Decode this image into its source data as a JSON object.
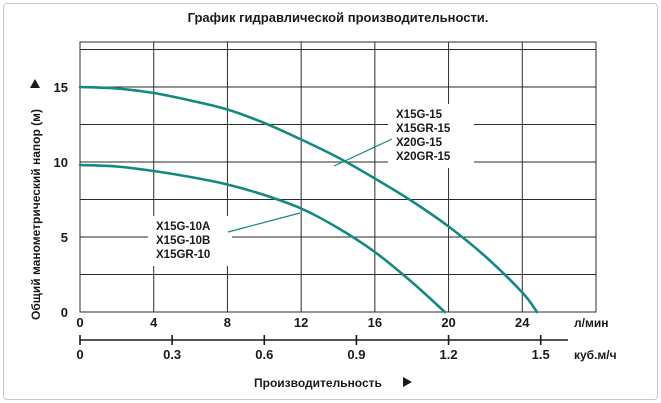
{
  "chart_data": {
    "type": "line",
    "title": "График гидравлической производительности.",
    "ylabel": "Общий манометрический напор (м)",
    "xlabel": "Производительность",
    "x_unit_primary": "л/мин",
    "x_unit_secondary": "куб.м/ч",
    "ylim": [
      0,
      18
    ],
    "xlim": [
      0,
      28
    ],
    "yticks": [
      0,
      5,
      10,
      15
    ],
    "xticks_primary": [
      0,
      4,
      8,
      12,
      16,
      20,
      24
    ],
    "xticks_secondary": [
      {
        "label": "0",
        "lpm": 0
      },
      {
        "label": "0.3",
        "lpm": 5
      },
      {
        "label": "0.6",
        "lpm": 10
      },
      {
        "label": "0.9",
        "lpm": 15
      },
      {
        "label": "1.2",
        "lpm": 20
      },
      {
        "label": "1.5",
        "lpm": 25
      }
    ],
    "grid": true,
    "series": [
      {
        "labels": [
          "X15G-15",
          "X15GR-15",
          "X20G-15",
          "X20GR-15"
        ],
        "color": "#138a80",
        "x": [
          0,
          2,
          4,
          6,
          8,
          10,
          12,
          14,
          16,
          18,
          20,
          22,
          24,
          24.8
        ],
        "y": [
          15.0,
          14.9,
          14.6,
          14.1,
          13.5,
          12.6,
          11.5,
          10.3,
          8.9,
          7.4,
          5.7,
          3.7,
          1.3,
          0
        ]
      },
      {
        "labels": [
          "X15G-10A",
          "X15G-10B",
          "X15GR-10"
        ],
        "color": "#138a80",
        "x": [
          0,
          2,
          4,
          6,
          8,
          10,
          12,
          14,
          16,
          18,
          19.8
        ],
        "y": [
          9.8,
          9.7,
          9.4,
          9.0,
          8.5,
          7.8,
          6.9,
          5.6,
          4.0,
          2.0,
          0
        ]
      }
    ]
  }
}
